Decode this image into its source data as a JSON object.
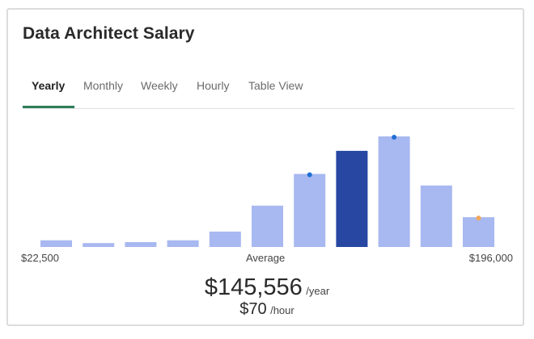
{
  "header": {
    "title": "Data Architect Salary"
  },
  "tabs": [
    {
      "label": "Yearly",
      "active": true
    },
    {
      "label": "Monthly",
      "active": false
    },
    {
      "label": "Weekly",
      "active": false
    },
    {
      "label": "Hourly",
      "active": false
    },
    {
      "label": "Table View",
      "active": false
    }
  ],
  "axis": {
    "min_label": "$22,500",
    "center_label": "Average",
    "max_label": "$196,000"
  },
  "summary": {
    "average_yearly": "$145,556",
    "yearly_unit": "/year",
    "average_hourly": "$70",
    "hourly_unit": "/hour"
  },
  "colors": {
    "bar": "#a8b8f0",
    "bar_highlight": "#2747a3",
    "marker_blue": "#1f6fd6",
    "marker_orange": "#f3a75a",
    "tab_accent": "#2e7d5b"
  },
  "chart_data": {
    "type": "bar",
    "title": "",
    "xlabel": "",
    "ylabel": "",
    "x_range": [
      22500,
      196000
    ],
    "values": [
      7,
      4,
      5,
      7,
      16,
      43,
      76,
      100,
      115,
      64,
      31
    ],
    "highlight_index": 7,
    "markers": [
      {
        "bar_index": 6,
        "color": "blue"
      },
      {
        "bar_index": 8,
        "color": "blue"
      },
      {
        "bar_index": 10,
        "color": "orange"
      }
    ],
    "ylim": [
      0,
      115
    ],
    "grid": false,
    "legend": "none"
  }
}
